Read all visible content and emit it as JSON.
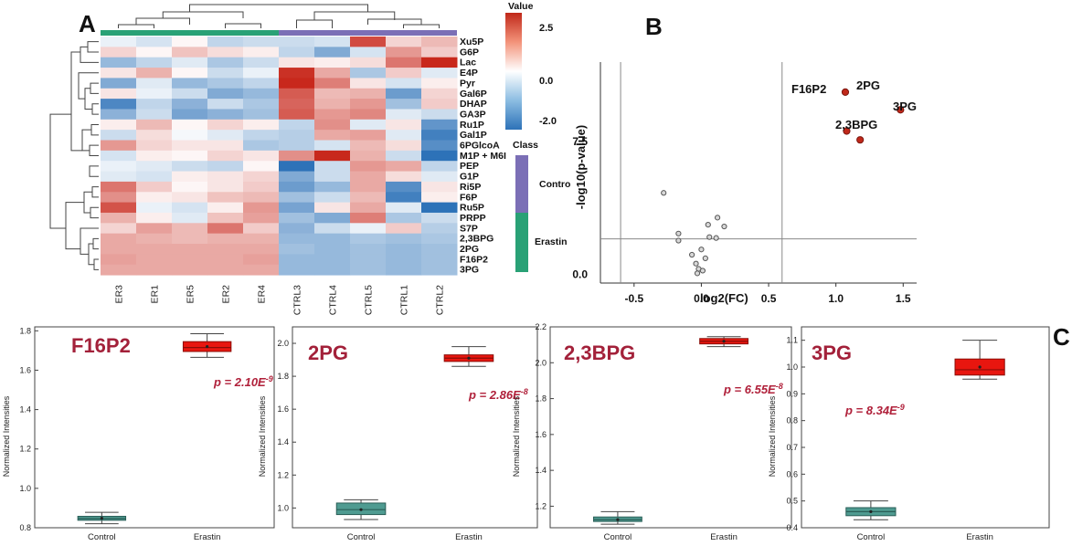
{
  "panels": {
    "a": "A",
    "b": "B",
    "c": "C"
  },
  "heatmap": {
    "rows": [
      "Xu5P",
      "G6P",
      "Lac",
      "E4P",
      "Pyr",
      "Gal6P",
      "DHAP",
      "GA3P",
      "Ru1P",
      "Gal1P",
      "6PGlcoA",
      "M1P + M6I",
      "PEP",
      "G1P",
      "Ri5P",
      "F6P",
      "Ru5P",
      "PRPP",
      "S7P",
      "2,3BPG",
      "2PG",
      "F16P2",
      "3PG"
    ],
    "columns": [
      "ER3",
      "ER1",
      "ER5",
      "ER2",
      "ER4",
      "CTRL3",
      "CTRL4",
      "CTRL5",
      "CTRL1",
      "CTRL2"
    ],
    "values": [
      [
        -0.2,
        -0.4,
        0.1,
        -0.6,
        -0.5,
        -0.5,
        -0.4,
        2.1,
        0.5,
        0.8
      ],
      [
        0.5,
        0.1,
        0.7,
        0.4,
        0.2,
        -0.6,
        -1.2,
        -0.4,
        1.2,
        0.6
      ],
      [
        -1.0,
        -0.6,
        -0.3,
        -0.8,
        -0.5,
        0.3,
        0.2,
        0.4,
        1.6,
        2.6
      ],
      [
        0.3,
        0.9,
        0.1,
        -0.5,
        -0.2,
        2.4,
        1.0,
        -0.8,
        0.6,
        -0.3
      ],
      [
        -1.2,
        -0.3,
        -1.0,
        -0.8,
        -0.6,
        2.5,
        1.5,
        0.3,
        -0.4,
        0.2
      ],
      [
        0.3,
        -0.2,
        -0.5,
        -1.2,
        -1.0,
        1.9,
        0.8,
        0.9,
        -1.4,
        0.5
      ],
      [
        -1.7,
        -0.6,
        -1.1,
        -0.5,
        -0.8,
        1.8,
        0.9,
        1.2,
        -0.9,
        0.6
      ],
      [
        -1.1,
        -0.5,
        -1.3,
        -1.1,
        -0.9,
        1.9,
        1.2,
        1.4,
        -0.3,
        -0.5
      ],
      [
        0.2,
        0.8,
        0.1,
        0.5,
        0.2,
        -0.6,
        1.3,
        -0.3,
        0.3,
        -1.5
      ],
      [
        -0.5,
        0.4,
        -0.1,
        -0.3,
        -0.6,
        -0.7,
        1.0,
        1.1,
        -0.3,
        -1.8
      ],
      [
        1.2,
        0.5,
        0.3,
        0.3,
        -0.8,
        -0.7,
        -0.4,
        0.8,
        0.4,
        -1.6
      ],
      [
        -0.4,
        0.2,
        0.1,
        0.5,
        0.3,
        1.3,
        2.8,
        0.9,
        -0.5,
        -2.0
      ],
      [
        -0.2,
        -0.3,
        -0.5,
        -0.6,
        0.1,
        -2.2,
        -0.5,
        1.2,
        1.0,
        -0.6
      ],
      [
        -0.3,
        -0.4,
        0.2,
        0.3,
        0.5,
        -1.2,
        -0.5,
        1.0,
        0.4,
        -0.3
      ],
      [
        1.6,
        0.6,
        0.1,
        0.3,
        0.6,
        -1.4,
        -1.0,
        1.0,
        -1.6,
        0.3
      ],
      [
        1.3,
        0.2,
        0.3,
        0.7,
        0.8,
        -0.9,
        -0.5,
        0.8,
        -1.8,
        0.2
      ],
      [
        2.0,
        -0.2,
        -0.4,
        0.2,
        1.2,
        -1.3,
        0.3,
        1.0,
        -0.3,
        -2.0
      ],
      [
        0.9,
        0.2,
        -0.3,
        0.7,
        1.1,
        -0.9,
        -1.2,
        1.5,
        -0.8,
        -0.5
      ],
      [
        0.5,
        1.1,
        0.8,
        1.6,
        0.6,
        -1.1,
        -0.5,
        -0.2,
        0.6,
        -0.7
      ],
      [
        1.0,
        0.9,
        0.8,
        0.9,
        0.9,
        -1.0,
        -1.0,
        -0.8,
        -0.9,
        -0.8
      ],
      [
        1.0,
        1.0,
        1.0,
        1.0,
        1.0,
        -0.9,
        -1.0,
        -0.9,
        -1.0,
        -0.9
      ],
      [
        1.1,
        1.0,
        1.0,
        1.0,
        1.1,
        -1.0,
        -1.0,
        -0.9,
        -1.0,
        -0.9
      ],
      [
        1.0,
        1.0,
        1.0,
        1.0,
        1.0,
        -1.0,
        -1.0,
        -0.9,
        -1.0,
        -0.9
      ]
    ],
    "legend_title": "Value",
    "legend_ticks": [
      "2.5",
      "0.0",
      "-2.0"
    ],
    "class_title": "Class",
    "class_labels": [
      "Contro",
      "Erastin"
    ],
    "colors": {
      "high": "#d7301f",
      "mid": "#ffffff",
      "low": "#2f7fc1",
      "control": "#7b6fb6",
      "erastin": "#29a176"
    }
  },
  "chart_data": [
    {
      "type": "heatmap",
      "title": "",
      "rows": [
        "Xu5P",
        "G6P",
        "Lac",
        "E4P",
        "Pyr",
        "Gal6P",
        "DHAP",
        "GA3P",
        "Ru1P",
        "Gal1P",
        "6PGlcoA",
        "M1P + M6I",
        "PEP",
        "G1P",
        "Ri5P",
        "F6P",
        "Ru5P",
        "PRPP",
        "S7P",
        "2,3BPG",
        "2PG",
        "F16P2",
        "3PG"
      ],
      "columns": [
        "ER3",
        "ER1",
        "ER5",
        "ER2",
        "ER4",
        "CTRL3",
        "CTRL4",
        "CTRL5",
        "CTRL1",
        "CTRL2"
      ],
      "color_range": [
        -2.0,
        2.5
      ]
    },
    {
      "type": "scatter",
      "xlabel": "log2(FC)",
      "ylabel": "-log10(p-value)",
      "xticks": [
        "-0.5",
        "0.0",
        "0.5",
        "1.0",
        "1.5"
      ],
      "yticks": [
        "0.0",
        "7.5"
      ],
      "xlim": [
        -0.75,
        1.6
      ],
      "ylim": [
        -0.5,
        12
      ],
      "threshold_x": [
        -0.6,
        0.6
      ],
      "threshold_y": 2.0,
      "points": [
        {
          "x": -0.28,
          "y": 4.6
        },
        {
          "x": 0.12,
          "y": 3.2
        },
        {
          "x": 0.17,
          "y": 2.7
        },
        {
          "x": -0.17,
          "y": 2.3
        },
        {
          "x": 0.05,
          "y": 2.8
        },
        {
          "x": 0.06,
          "y": 2.1
        },
        {
          "x": 0.11,
          "y": 2.05
        },
        {
          "x": -0.17,
          "y": 1.9
        },
        {
          "x": 0.0,
          "y": 1.4
        },
        {
          "x": -0.07,
          "y": 1.1
        },
        {
          "x": 0.03,
          "y": 0.9
        },
        {
          "x": -0.04,
          "y": 0.6
        },
        {
          "x": -0.02,
          "y": 0.3
        },
        {
          "x": 0.01,
          "y": 0.2
        },
        {
          "x": -0.03,
          "y": 0.05
        }
      ],
      "significant_points": [
        {
          "label": "F16P2",
          "x": 1.07,
          "y": 10.3
        },
        {
          "label": "2PG",
          "x": 1.08,
          "y": 8.1
        },
        {
          "label": "3PG",
          "x": 1.48,
          "y": 9.3
        },
        {
          "label": "2,3BPG",
          "x": 1.18,
          "y": 7.6
        }
      ]
    },
    {
      "type": "box",
      "title": "F16P2",
      "p_value": "p = 2.10E",
      "p_exp": "-9",
      "ylabel": "Normalized Intensities",
      "yticks": [
        "0.8",
        "1.0",
        "1.2",
        "1.4",
        "1.6",
        "1.8"
      ],
      "ylim": [
        0.8,
        1.82
      ],
      "categories": [
        "Control",
        "Erastin"
      ],
      "boxes": [
        {
          "q1": 0.838,
          "median": 0.847,
          "q3": 0.858,
          "min": 0.82,
          "max": 0.878,
          "mean": 0.848
        },
        {
          "q1": 1.695,
          "median": 1.715,
          "q3": 1.745,
          "min": 1.665,
          "max": 1.785,
          "mean": 1.72
        }
      ]
    },
    {
      "type": "box",
      "title": "2PG",
      "p_value": "p = 2.86E",
      "p_exp": "-8",
      "ylabel": "Normalized Intensities",
      "yticks": [
        "1.0",
        "1.2",
        "1.4",
        "1.6",
        "1.8",
        "2.0"
      ],
      "ylim": [
        0.88,
        2.1
      ],
      "categories": [
        "Control",
        "Erastin"
      ],
      "boxes": [
        {
          "q1": 0.96,
          "median": 0.99,
          "q3": 1.03,
          "min": 0.93,
          "max": 1.05,
          "mean": 0.99
        },
        {
          "q1": 1.89,
          "median": 1.91,
          "q3": 1.93,
          "min": 1.86,
          "max": 1.98,
          "mean": 1.91
        }
      ]
    },
    {
      "type": "box",
      "title": "2,3BPG",
      "p_value": "p = 6.55E",
      "p_exp": "-8",
      "ylabel": "Normalized Intensities",
      "yticks": [
        "1.2",
        "1.4",
        "1.6",
        "1.8",
        "2.0",
        "2.2"
      ],
      "ylim": [
        1.08,
        2.2
      ],
      "categories": [
        "Control",
        "Erastin"
      ],
      "boxes": [
        {
          "q1": 1.115,
          "median": 1.125,
          "q3": 1.14,
          "min": 1.1,
          "max": 1.17,
          "mean": 1.125
        },
        {
          "q1": 2.105,
          "median": 2.12,
          "q3": 2.135,
          "min": 2.09,
          "max": 2.145,
          "mean": 2.12
        }
      ]
    },
    {
      "type": "box",
      "title": "3PG",
      "p_value": "p = 8.34E",
      "p_exp": "-9",
      "ylabel": "Normalized Intensities",
      "yticks": [
        "0.4",
        "0.5",
        "0.6",
        "0.7",
        "0.8",
        "0.9",
        "1.0",
        "1.1"
      ],
      "ylim": [
        0.4,
        1.15
      ],
      "categories": [
        "Control",
        "Erastin"
      ],
      "boxes": [
        {
          "q1": 0.445,
          "median": 0.46,
          "q3": 0.475,
          "min": 0.43,
          "max": 0.5,
          "mean": 0.46
        },
        {
          "q1": 0.97,
          "median": 0.99,
          "q3": 1.03,
          "min": 0.955,
          "max": 1.1,
          "mean": 1.0
        }
      ]
    }
  ]
}
